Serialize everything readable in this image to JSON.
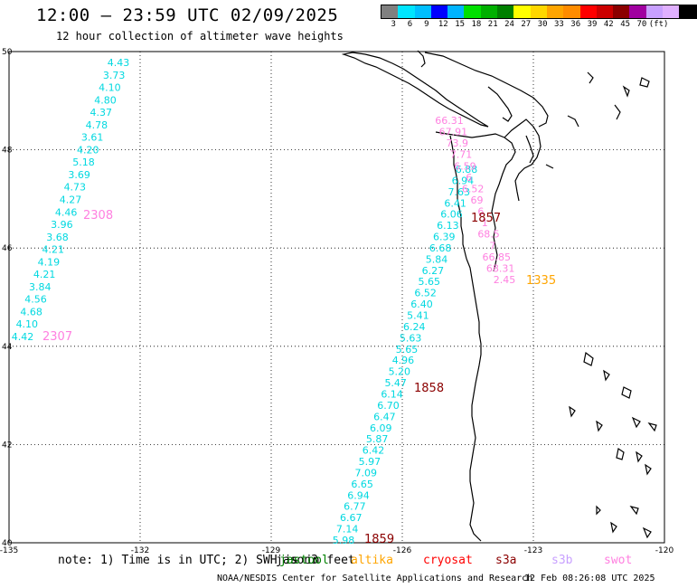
{
  "header": {
    "title": "12:00 – 23:59 UTC 02/09/2025",
    "subtitle": "12 hour collection of altimeter wave heights"
  },
  "colorbar": {
    "colors": [
      "#808080",
      "#00e5ff",
      "#00bfff",
      "#0000ff",
      "#00b4ff",
      "#00e000",
      "#00b000",
      "#008000",
      "#ffff00",
      "#ffd700",
      "#ffa500",
      "#ff8c00",
      "#ff0000",
      "#cc0000",
      "#8b0000",
      "#a000a0",
      "#c8a0ff",
      "#e0b0ff",
      "#000000"
    ],
    "labels": [
      "3",
      "6",
      "9",
      "12",
      "15",
      "18",
      "21",
      "24",
      "27",
      "30",
      "33",
      "36",
      "39",
      "42",
      "45",
      "70",
      "(ft)"
    ]
  },
  "map": {
    "lon_ticks": [
      "-135",
      "-132",
      "-129",
      "-126",
      "-123",
      "-120"
    ],
    "lat_ticks": [
      "50",
      "48",
      "46",
      "44",
      "42",
      "40"
    ],
    "lon_range": [
      -135,
      -120
    ],
    "lat_range": [
      40,
      50
    ]
  },
  "tracks": {
    "jason": {
      "color": "#00d8e0",
      "values": [
        "4.43",
        "3.73",
        "4.10",
        "4.80",
        "4.37",
        "4.78",
        "3.61",
        "4.20",
        "5.18",
        "3.69",
        "4.73",
        "4.27",
        "4.46",
        "3.96",
        "3.68",
        "4.21",
        "4.19",
        "4.21",
        "3.84",
        "4.56",
        "4.68",
        "4.10",
        "4.42"
      ]
    },
    "jason_labels": [
      {
        "text": "2308",
        "color": "#ff80e0"
      },
      {
        "text": "2307",
        "color": "#ff80e0"
      }
    ],
    "coast": {
      "color": "#00d8e0",
      "values": [
        "6.88",
        "6.94",
        "7.63",
        "6.41",
        "6.06",
        "6.13",
        "6.39",
        "6.68",
        "5.84",
        "6.27",
        "5.65",
        "6.52",
        "6.40",
        "5.41",
        "6.24",
        "5.63",
        "5.65",
        "4.96",
        "5.20",
        "5.47",
        "6.14",
        "6.70",
        "6.47",
        "6.09",
        "5.87",
        "6.42",
        "5.97",
        "7.09",
        "6.65",
        "6.94",
        "6.77",
        "6.67",
        "7.14",
        "5.98"
      ]
    },
    "pink": {
      "color": "#ff80e0",
      "values": [
        "66.31",
        "67.91",
        "73.9",
        "7.71",
        "6.59",
        "6",
        "6.52",
        "69",
        "6",
        "1",
        "68.5",
        "7",
        "66.85",
        "68.31",
        "2.45"
      ]
    },
    "time_labels": [
      {
        "text": "1857",
        "color": "#8b0000"
      },
      {
        "text": "1335",
        "color": "#ffa500"
      },
      {
        "text": "1858",
        "color": "#8b0000"
      },
      {
        "text": "1859",
        "color": "#8b0000"
      }
    ]
  },
  "note": "note:  1) Time is in UTC; 2) SWH is in feet",
  "legend": [
    {
      "label": "jason3",
      "color": "#000000"
    },
    {
      "label": "jastool",
      "color": "#008000"
    },
    {
      "label": "altika",
      "color": "#ffa500"
    },
    {
      "label": "cryosat",
      "color": "#ff0000"
    },
    {
      "label": "s3a",
      "color": "#8b0000"
    },
    {
      "label": "s3b",
      "color": "#c8a0ff"
    },
    {
      "label": "swot",
      "color": "#ff80e0"
    }
  ],
  "footer": {
    "org": "NOAA/NESDIS Center for Satellite Applications and Research",
    "timestamp": "12 Feb 08:26:08 UTC 2025"
  }
}
